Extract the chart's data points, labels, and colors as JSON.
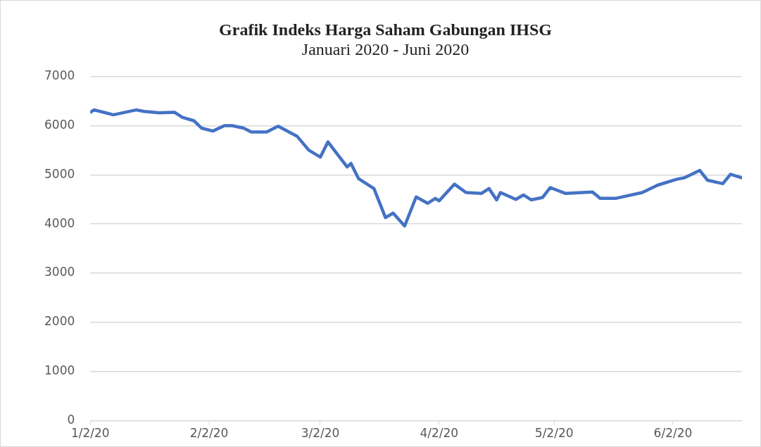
{
  "chart_data": {
    "type": "line",
    "title": "Grafik Indeks Harga Saham Gabungan IHSG",
    "subtitle": "Januari 2020 - Juni 2020",
    "x": [
      "2020-01-02",
      "2020-01-03",
      "2020-01-06",
      "2020-01-08",
      "2020-01-11",
      "2020-01-14",
      "2020-01-16",
      "2020-01-20",
      "2020-01-24",
      "2020-01-26",
      "2020-01-29",
      "2020-01-31",
      "2020-02-03",
      "2020-02-06",
      "2020-02-08",
      "2020-02-11",
      "2020-02-13",
      "2020-02-17",
      "2020-02-20",
      "2020-02-25",
      "2020-02-28",
      "2020-03-02",
      "2020-03-04",
      "2020-03-09",
      "2020-03-10",
      "2020-03-12",
      "2020-03-16",
      "2020-03-19",
      "2020-03-21",
      "2020-03-24",
      "2020-03-27",
      "2020-03-30",
      "2020-04-01",
      "2020-04-02",
      "2020-04-06",
      "2020-04-09",
      "2020-04-13",
      "2020-04-15",
      "2020-04-17",
      "2020-04-18",
      "2020-04-22",
      "2020-04-24",
      "2020-04-26",
      "2020-04-29",
      "2020-05-01",
      "2020-05-05",
      "2020-05-12",
      "2020-05-14",
      "2020-05-18",
      "2020-05-25",
      "2020-05-29",
      "2020-06-03",
      "2020-06-05",
      "2020-06-09",
      "2020-06-11",
      "2020-06-15",
      "2020-06-17",
      "2020-06-20"
    ],
    "series": [
      {
        "color": "#4472c4",
        "values": [
          6270,
          6320,
          6260,
          6220,
          6270,
          6320,
          6290,
          6260,
          6270,
          6170,
          6100,
          5950,
          5890,
          6000,
          6000,
          5950,
          5870,
          5870,
          5990,
          5780,
          5500,
          5360,
          5670,
          5160,
          5230,
          4920,
          4720,
          4130,
          4220,
          3960,
          4550,
          4420,
          4520,
          4470,
          4810,
          4640,
          4620,
          4720,
          4490,
          4640,
          4500,
          4590,
          4490,
          4540,
          4740,
          4620,
          4650,
          4520,
          4520,
          4640,
          4790,
          4910,
          4940,
          5090,
          4890,
          4820,
          5010,
          4940
        ]
      }
    ],
    "xlim": [
      "2020-01-02",
      "2020-06-20"
    ],
    "xticks": [
      {
        "value": "2020-01-02",
        "label": "1/2/20"
      },
      {
        "value": "2020-02-02",
        "label": "2/2/20"
      },
      {
        "value": "2020-03-02",
        "label": "3/2/20"
      },
      {
        "value": "2020-04-02",
        "label": "4/2/20"
      },
      {
        "value": "2020-05-02",
        "label": "5/2/20"
      },
      {
        "value": "2020-06-02",
        "label": "6/2/20"
      }
    ],
    "ylim": [
      0,
      7000
    ],
    "yticks": [
      0,
      1000,
      2000,
      3000,
      4000,
      5000,
      6000,
      7000
    ],
    "grid": "y",
    "legend": false,
    "marker": "none",
    "line_style": "solid"
  }
}
